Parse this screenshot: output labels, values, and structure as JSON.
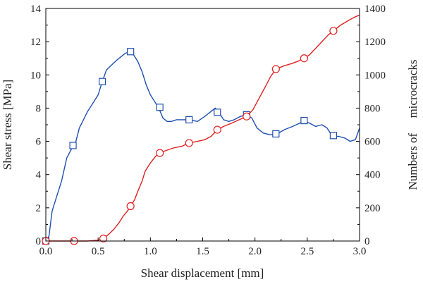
{
  "chart_data": {
    "type": "line",
    "title": "",
    "xlabel": "Shear displacement [mm]",
    "ylabel_left": "Shear stress [MPa]",
    "ylabel_right": "Numbers of     microcracks",
    "xlim": [
      0,
      3
    ],
    "ylim_left": [
      0,
      14
    ],
    "ylim_right": [
      0,
      1400
    ],
    "xticks": [
      "0.0",
      "0.5",
      "1.0",
      "1.5",
      "2.0",
      "2.5",
      "3.0"
    ],
    "yticks_left": [
      "0",
      "2",
      "4",
      "6",
      "8",
      "10",
      "12",
      "14"
    ],
    "yticks_right": [
      "0",
      "200",
      "400",
      "600",
      "800",
      "1000",
      "1200",
      "1400"
    ],
    "grid": false,
    "series": [
      {
        "name": "",
        "axis": "left",
        "color": "#1f4fb0",
        "marker": "square",
        "x": [
          0.0,
          0.03,
          0.06,
          0.1,
          0.15,
          0.2,
          0.25,
          0.28,
          0.32,
          0.36,
          0.4,
          0.45,
          0.5,
          0.54,
          0.58,
          0.63,
          0.68,
          0.72,
          0.76,
          0.8,
          0.84,
          0.88,
          0.92,
          0.96,
          1.0,
          1.04,
          1.08,
          1.12,
          1.16,
          1.2,
          1.25,
          1.3,
          1.37,
          1.45,
          1.52,
          1.58,
          1.62,
          1.65,
          1.7,
          1.75,
          1.8,
          1.86,
          1.92,
          1.97,
          2.02,
          2.08,
          2.14,
          2.2,
          2.28,
          2.36,
          2.43,
          2.47,
          2.52,
          2.58,
          2.64,
          2.69,
          2.74,
          2.8,
          2.86,
          2.91,
          2.96,
          3.0
        ],
        "y": [
          0.0,
          0.3,
          1.8,
          2.6,
          3.6,
          5.0,
          5.6,
          5.8,
          6.8,
          7.3,
          7.8,
          8.3,
          8.8,
          9.6,
          10.3,
          10.6,
          10.9,
          11.1,
          11.3,
          11.4,
          11.2,
          10.8,
          10.2,
          9.4,
          8.8,
          8.4,
          8.0,
          7.4,
          7.2,
          7.2,
          7.3,
          7.3,
          7.3,
          7.2,
          7.5,
          7.8,
          8.0,
          7.8,
          7.3,
          7.2,
          7.3,
          7.5,
          7.6,
          7.4,
          6.8,
          6.5,
          6.4,
          6.4,
          6.7,
          6.9,
          7.1,
          7.2,
          7.1,
          6.9,
          7.0,
          6.8,
          6.3,
          6.3,
          6.2,
          6.0,
          6.1,
          6.8
        ],
        "marker_x": [
          0.0,
          0.26,
          0.54,
          0.81,
          1.09,
          1.37,
          1.64,
          1.92,
          2.2,
          2.47,
          2.75
        ],
        "marker_y": [
          0.0,
          5.75,
          9.6,
          11.4,
          8.05,
          7.3,
          7.75,
          7.6,
          6.45,
          7.25,
          6.35
        ]
      },
      {
        "name": "",
        "axis": "right",
        "color": "#e02020",
        "marker": "circle",
        "x": [
          0.0,
          0.27,
          0.4,
          0.5,
          0.55,
          0.6,
          0.65,
          0.7,
          0.74,
          0.78,
          0.81,
          0.85,
          0.88,
          0.92,
          0.95,
          1.0,
          1.05,
          1.09,
          1.15,
          1.22,
          1.3,
          1.37,
          1.45,
          1.52,
          1.58,
          1.64,
          1.7,
          1.78,
          1.85,
          1.92,
          1.98,
          2.04,
          2.1,
          2.15,
          2.2,
          2.28,
          2.36,
          2.42,
          2.47,
          2.52,
          2.58,
          2.64,
          2.7,
          2.75,
          2.82,
          2.9,
          2.96,
          3.0
        ],
        "y": [
          0.0,
          0.0,
          0.0,
          5.0,
          15.0,
          40.0,
          70.0,
          110.0,
          150.0,
          180.0,
          210.0,
          250.0,
          300.0,
          360.0,
          420.0,
          470.0,
          510.0,
          530.0,
          545.0,
          560.0,
          570.0,
          590.0,
          600.0,
          610.0,
          630.0,
          670.0,
          690.0,
          710.0,
          730.0,
          750.0,
          790.0,
          860.0,
          930.0,
          990.0,
          1035.0,
          1055.0,
          1070.0,
          1085.0,
          1100.0,
          1120.0,
          1160.0,
          1200.0,
          1240.0,
          1265.0,
          1300.0,
          1330.0,
          1350.0,
          1360.0
        ],
        "marker_x": [
          0.0,
          0.27,
          0.55,
          0.81,
          1.09,
          1.37,
          1.64,
          1.92,
          2.2,
          2.47,
          2.75
        ],
        "marker_y": [
          0.0,
          0.0,
          15.0,
          210.0,
          530.0,
          590.0,
          670.0,
          750.0,
          1035.0,
          1100.0,
          1265.0
        ]
      }
    ]
  }
}
